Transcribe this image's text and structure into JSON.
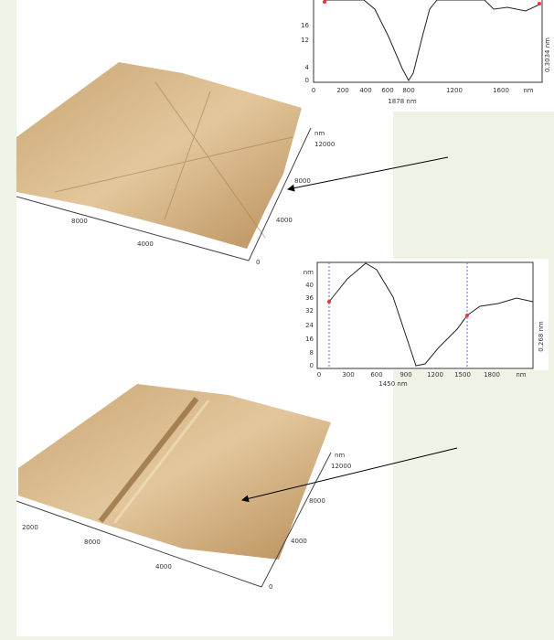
{
  "profile_top": {
    "y_labels": [
      "16",
      "12",
      "4",
      "0"
    ],
    "x_labels": [
      "0",
      "200",
      "400",
      "600",
      "800",
      "1200",
      "1600",
      "nm"
    ],
    "x_caption": "1878 nm",
    "y_caption": "0.3034 nm"
  },
  "surface_top": {
    "side_labels": [
      "nm",
      "12000",
      "8000",
      "4000",
      "0"
    ],
    "front_labels": [
      "8000",
      "4000"
    ]
  },
  "profile_bottom": {
    "y_labels": [
      "nm",
      "40",
      "36",
      "32",
      "24",
      "16",
      "8",
      "0"
    ],
    "x_labels": [
      "0",
      "300",
      "600",
      "900",
      "1200",
      "1500",
      "1800",
      "nm"
    ],
    "x_caption": "1450 nm",
    "y_caption": "0.268 nm"
  },
  "surface_bottom": {
    "side_labels": [
      "nm",
      "12000",
      "8000",
      "4000",
      "0"
    ],
    "front_labels": [
      "2000",
      "8000",
      "4000"
    ]
  }
}
